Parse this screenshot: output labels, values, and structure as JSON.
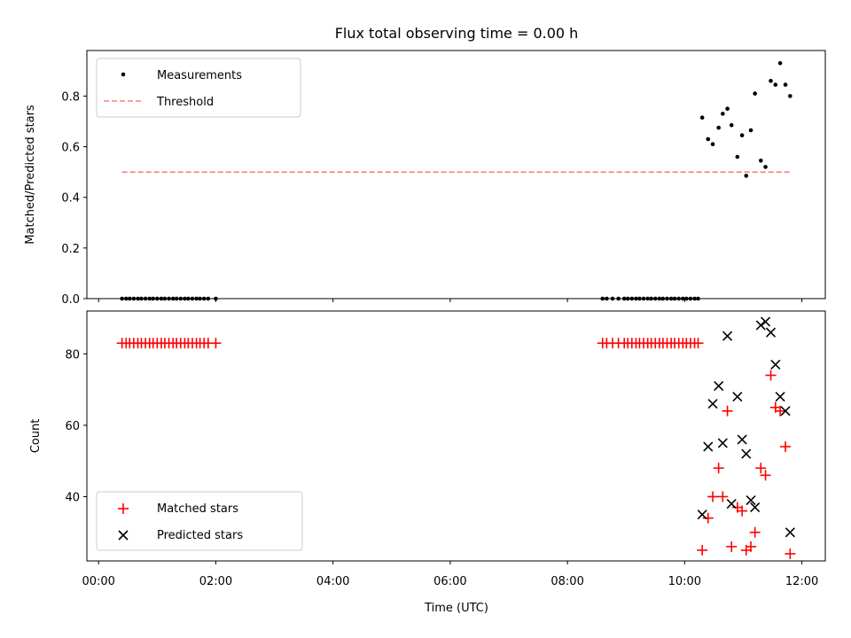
{
  "title": "Flux total observing time = 0.00 h",
  "chart_data": [
    {
      "type": "scatter",
      "ylabel": "Matched/Predicted stars",
      "xlim": [
        -0.2,
        12.4
      ],
      "ylim": [
        0.0,
        0.98
      ],
      "yticks": [
        "0.0",
        "0.2",
        "0.4",
        "0.6",
        "0.8"
      ],
      "grid": false,
      "legend": "top-left",
      "series": [
        {
          "name": "Measurements",
          "marker": "dot",
          "color": "#000000",
          "x": [
            0.4,
            0.47,
            0.53,
            0.6,
            0.67,
            0.73,
            0.8,
            0.87,
            0.93,
            1.0,
            1.07,
            1.13,
            1.2,
            1.27,
            1.33,
            1.4,
            1.47,
            1.53,
            1.6,
            1.67,
            1.73,
            1.8,
            1.87,
            2.0,
            8.6,
            8.67,
            8.77,
            8.87,
            8.97,
            9.03,
            9.1,
            9.17,
            9.23,
            9.3,
            9.37,
            9.43,
            9.5,
            9.57,
            9.63,
            9.7,
            9.77,
            9.83,
            9.9,
            9.97,
            10.03,
            10.1,
            10.17,
            10.23,
            10.3,
            10.4,
            10.48,
            10.58,
            10.65,
            10.73,
            10.8,
            10.9,
            10.98,
            11.05,
            11.13,
            11.2,
            11.3,
            11.38,
            11.47,
            11.55,
            11.63,
            11.72,
            11.8
          ],
          "y": [
            0,
            0,
            0,
            0,
            0,
            0,
            0,
            0,
            0,
            0,
            0,
            0,
            0,
            0,
            0,
            0,
            0,
            0,
            0,
            0,
            0,
            0,
            0,
            0,
            0,
            0,
            0,
            0,
            0,
            0,
            0,
            0,
            0,
            0,
            0,
            0,
            0,
            0,
            0,
            0,
            0,
            0,
            0,
            0,
            0,
            0,
            0,
            0,
            0.715,
            0.63,
            0.61,
            0.675,
            0.73,
            0.75,
            0.685,
            0.56,
            0.645,
            0.485,
            0.665,
            0.81,
            0.545,
            0.52,
            0.86,
            0.845,
            0.93,
            0.845,
            0.8
          ]
        },
        {
          "name": "Threshold",
          "style": "dashed",
          "color": "#ff7f7f",
          "x": [
            0.4,
            11.8
          ],
          "y": [
            0.5,
            0.5
          ]
        }
      ]
    },
    {
      "type": "scatter",
      "xlabel": "Time (UTC)",
      "ylabel": "Count",
      "xlim": [
        -0.2,
        12.4
      ],
      "ylim": [
        22,
        92
      ],
      "xticks": [
        {
          "v": 0,
          "label": "00:00"
        },
        {
          "v": 2,
          "label": "02:00"
        },
        {
          "v": 4,
          "label": "04:00"
        },
        {
          "v": 6,
          "label": "06:00"
        },
        {
          "v": 8,
          "label": "08:00"
        },
        {
          "v": 10,
          "label": "10:00"
        },
        {
          "v": 12,
          "label": "12:00"
        }
      ],
      "yticks": [
        "40",
        "60",
        "80"
      ],
      "grid": false,
      "legend": "bottom-left",
      "series": [
        {
          "name": "Matched stars",
          "marker": "plus",
          "color": "#ff0000",
          "x": [
            0.4,
            0.47,
            0.53,
            0.6,
            0.67,
            0.73,
            0.8,
            0.87,
            0.93,
            1.0,
            1.07,
            1.13,
            1.2,
            1.27,
            1.33,
            1.4,
            1.47,
            1.53,
            1.6,
            1.67,
            1.73,
            1.8,
            1.87,
            2.0,
            8.6,
            8.67,
            8.77,
            8.87,
            8.97,
            9.03,
            9.1,
            9.17,
            9.23,
            9.3,
            9.37,
            9.43,
            9.5,
            9.57,
            9.63,
            9.7,
            9.77,
            9.83,
            9.9,
            9.97,
            10.03,
            10.1,
            10.17,
            10.23,
            10.3,
            10.4,
            10.48,
            10.58,
            10.65,
            10.73,
            10.8,
            10.9,
            10.98,
            11.05,
            11.13,
            11.2,
            11.3,
            11.38,
            11.47,
            11.55,
            11.63,
            11.72,
            11.8
          ],
          "y": [
            83,
            83,
            83,
            83,
            83,
            83,
            83,
            83,
            83,
            83,
            83,
            83,
            83,
            83,
            83,
            83,
            83,
            83,
            83,
            83,
            83,
            83,
            83,
            83,
            83,
            83,
            83,
            83,
            83,
            83,
            83,
            83,
            83,
            83,
            83,
            83,
            83,
            83,
            83,
            83,
            83,
            83,
            83,
            83,
            83,
            83,
            83,
            83,
            25,
            34,
            40,
            48,
            40,
            64,
            26,
            37,
            36,
            25,
            26,
            30,
            48,
            46,
            74,
            65,
            64,
            54,
            24
          ]
        },
        {
          "name": "Predicted stars",
          "marker": "x",
          "color": "#000000",
          "x": [
            10.3,
            10.4,
            10.48,
            10.58,
            10.65,
            10.73,
            10.8,
            10.9,
            10.98,
            11.05,
            11.13,
            11.2,
            11.3,
            11.38,
            11.47,
            11.55,
            11.63,
            11.72,
            11.8
          ],
          "y": [
            35,
            54,
            66,
            71,
            55,
            85,
            38,
            68,
            56,
            52,
            39,
            37,
            88,
            89,
            86,
            77,
            68,
            64,
            30
          ]
        }
      ]
    }
  ]
}
